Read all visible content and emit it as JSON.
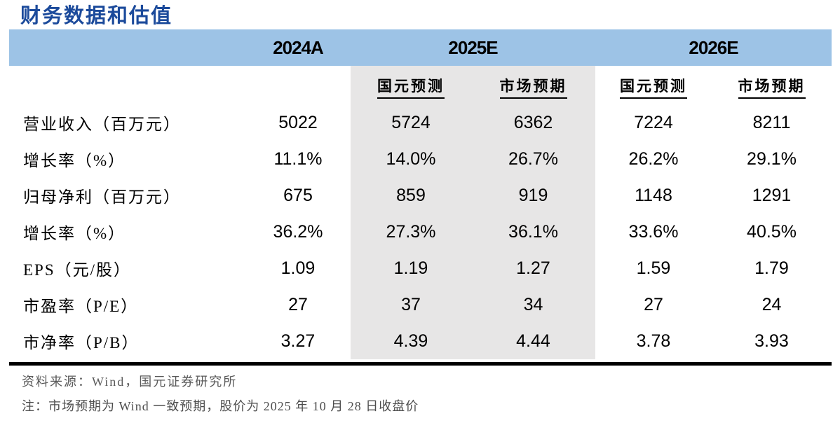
{
  "title": "财务数据和估值",
  "colors": {
    "title": "#1B4A9B",
    "header_bg": "#9DC3E6",
    "band_bg": "#E7E6E6",
    "border": "#000000",
    "text": "#000000",
    "footer_text": "#595959",
    "note_text": "#4D4D4D"
  },
  "table": {
    "year_headers": [
      "2024A",
      "2025E",
      "2026E"
    ],
    "subheaders": {
      "guoyuan": "国元预测",
      "market": "市场预期"
    },
    "rows": [
      {
        "label": "营业收入（百万元）",
        "values": [
          "5022",
          "5724",
          "6362",
          "7224",
          "8211"
        ]
      },
      {
        "label": "增长率（%）",
        "values": [
          "11.1%",
          "14.0%",
          "26.7%",
          "26.2%",
          "29.1%"
        ]
      },
      {
        "label": "归母净利（百万元）",
        "values": [
          "675",
          "859",
          "919",
          "1148",
          "1291"
        ]
      },
      {
        "label": "增长率（%）",
        "values": [
          "36.2%",
          "27.3%",
          "36.1%",
          "33.6%",
          "40.5%"
        ]
      },
      {
        "label": "EPS（元/股）",
        "values": [
          "1.09",
          "1.19",
          "1.27",
          "1.59",
          "1.79"
        ]
      },
      {
        "label": "市盈率（P/E）",
        "values": [
          "27",
          "37",
          "34",
          "27",
          "24"
        ]
      },
      {
        "label": "市净率（P/B）",
        "values": [
          "3.27",
          "4.39",
          "4.44",
          "3.78",
          "3.93"
        ]
      }
    ]
  },
  "footer": {
    "source": "资料来源：Wind，国元证券研究所",
    "note": "注：市场预期为 Wind 一致预期，股价为 2025 年 10 月 28 日收盘价"
  }
}
